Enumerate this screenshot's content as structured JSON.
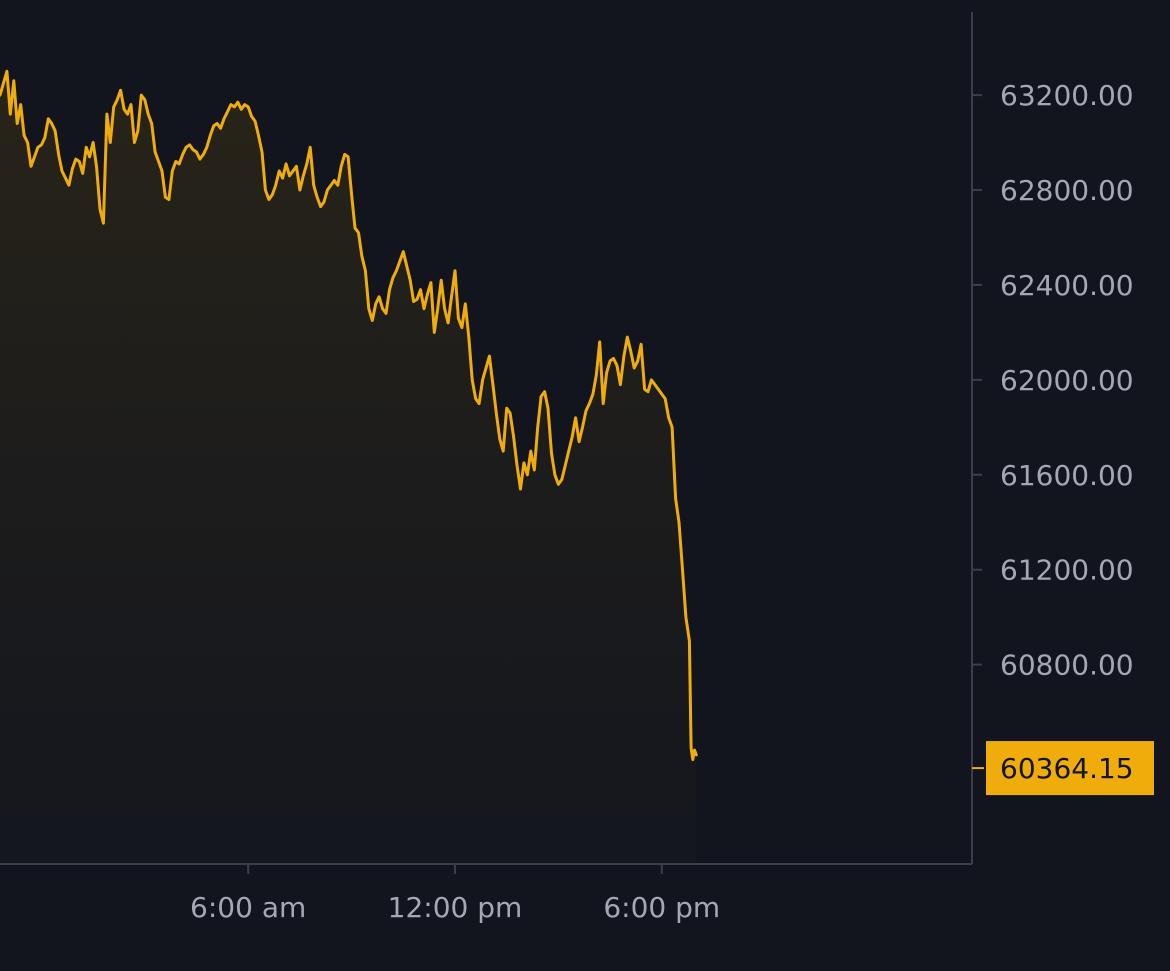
{
  "colors": {
    "background": "#12151d",
    "line": "#f0ac0a",
    "axis": "#3a3f4e",
    "tick_text": "#a3a8b5",
    "badge_bg": "#f0ac0a",
    "badge_text": "#12151d",
    "area_top": "#2a2518",
    "area_bottom": "#16181f"
  },
  "chart_data": {
    "type": "area",
    "title": "",
    "xlabel": "",
    "ylabel": "",
    "ylim": [
      59960,
      63550
    ],
    "xlim_hours": [
      -1.2,
      27.0
    ],
    "x_ticks": [
      {
        "label": "6:00 am",
        "hour": 6
      },
      {
        "label": "12:00 pm",
        "hour": 12
      },
      {
        "label": "6:00 pm",
        "hour": 18
      }
    ],
    "y_ticks": [
      "63200.00",
      "62800.00",
      "62400.00",
      "62000.00",
      "61600.00",
      "61200.00",
      "60800.00"
    ],
    "last_price": "60364.15",
    "grid": false,
    "series": [
      {
        "points": [
          [
            -1.2,
            63200
          ],
          [
            -1.0,
            63300
          ],
          [
            -0.9,
            63120
          ],
          [
            -0.8,
            63260
          ],
          [
            -0.7,
            63080
          ],
          [
            -0.6,
            63160
          ],
          [
            -0.5,
            63030
          ],
          [
            -0.4,
            63000
          ],
          [
            -0.3,
            62900
          ],
          [
            -0.2,
            62940
          ],
          [
            -0.1,
            62980
          ],
          [
            0.0,
            62990
          ],
          [
            0.1,
            63020
          ],
          [
            0.2,
            63100
          ],
          [
            0.3,
            63080
          ],
          [
            0.4,
            63050
          ],
          [
            0.5,
            62950
          ],
          [
            0.6,
            62880
          ],
          [
            0.7,
            62850
          ],
          [
            0.8,
            62820
          ],
          [
            0.9,
            62890
          ],
          [
            1.0,
            62930
          ],
          [
            1.1,
            62920
          ],
          [
            1.2,
            62870
          ],
          [
            1.3,
            62980
          ],
          [
            1.4,
            62940
          ],
          [
            1.5,
            63000
          ],
          [
            1.6,
            62900
          ],
          [
            1.7,
            62720
          ],
          [
            1.8,
            62660
          ],
          [
            1.9,
            63120
          ],
          [
            2.0,
            63000
          ],
          [
            2.1,
            63150
          ],
          [
            2.2,
            63180
          ],
          [
            2.3,
            63220
          ],
          [
            2.4,
            63140
          ],
          [
            2.5,
            63120
          ],
          [
            2.6,
            63160
          ],
          [
            2.7,
            63000
          ],
          [
            2.8,
            63050
          ],
          [
            2.9,
            63200
          ],
          [
            3.0,
            63180
          ],
          [
            3.1,
            63120
          ],
          [
            3.2,
            63080
          ],
          [
            3.3,
            62960
          ],
          [
            3.4,
            62920
          ],
          [
            3.5,
            62880
          ],
          [
            3.6,
            62770
          ],
          [
            3.7,
            62760
          ],
          [
            3.8,
            62880
          ],
          [
            3.9,
            62920
          ],
          [
            4.0,
            62910
          ],
          [
            4.1,
            62950
          ],
          [
            4.2,
            62980
          ],
          [
            4.3,
            62990
          ],
          [
            4.4,
            62970
          ],
          [
            4.5,
            62960
          ],
          [
            4.6,
            62930
          ],
          [
            4.7,
            62950
          ],
          [
            4.8,
            62980
          ],
          [
            4.9,
            63030
          ],
          [
            5.0,
            63070
          ],
          [
            5.1,
            63080
          ],
          [
            5.2,
            63060
          ],
          [
            5.3,
            63100
          ],
          [
            5.4,
            63130
          ],
          [
            5.5,
            63160
          ],
          [
            5.6,
            63150
          ],
          [
            5.7,
            63170
          ],
          [
            5.8,
            63140
          ],
          [
            5.9,
            63160
          ],
          [
            6.0,
            63150
          ],
          [
            6.1,
            63110
          ],
          [
            6.2,
            63090
          ],
          [
            6.3,
            63030
          ],
          [
            6.4,
            62960
          ],
          [
            6.5,
            62800
          ],
          [
            6.6,
            62760
          ],
          [
            6.7,
            62780
          ],
          [
            6.8,
            62820
          ],
          [
            6.9,
            62880
          ],
          [
            7.0,
            62850
          ],
          [
            7.1,
            62910
          ],
          [
            7.2,
            62860
          ],
          [
            7.3,
            62880
          ],
          [
            7.4,
            62900
          ],
          [
            7.5,
            62800
          ],
          [
            7.6,
            62860
          ],
          [
            7.7,
            62910
          ],
          [
            7.8,
            62980
          ],
          [
            7.9,
            62820
          ],
          [
            8.0,
            62770
          ],
          [
            8.1,
            62730
          ],
          [
            8.2,
            62750
          ],
          [
            8.3,
            62800
          ],
          [
            8.4,
            62820
          ],
          [
            8.5,
            62840
          ],
          [
            8.6,
            62820
          ],
          [
            8.7,
            62900
          ],
          [
            8.8,
            62950
          ],
          [
            8.9,
            62940
          ],
          [
            9.0,
            62780
          ],
          [
            9.1,
            62640
          ],
          [
            9.2,
            62620
          ],
          [
            9.3,
            62520
          ],
          [
            9.4,
            62460
          ],
          [
            9.5,
            62300
          ],
          [
            9.6,
            62250
          ],
          [
            9.7,
            62320
          ],
          [
            9.8,
            62350
          ],
          [
            9.9,
            62300
          ],
          [
            10.0,
            62280
          ],
          [
            10.1,
            62380
          ],
          [
            10.2,
            62430
          ],
          [
            10.3,
            62460
          ],
          [
            10.4,
            62500
          ],
          [
            10.5,
            62540
          ],
          [
            10.6,
            62480
          ],
          [
            10.7,
            62420
          ],
          [
            10.8,
            62330
          ],
          [
            10.9,
            62340
          ],
          [
            11.0,
            62380
          ],
          [
            11.1,
            62300
          ],
          [
            11.2,
            62360
          ],
          [
            11.3,
            62410
          ],
          [
            11.4,
            62200
          ],
          [
            11.5,
            62300
          ],
          [
            11.6,
            62420
          ],
          [
            11.7,
            62300
          ],
          [
            11.8,
            62240
          ],
          [
            11.9,
            62350
          ],
          [
            12.0,
            62460
          ],
          [
            12.1,
            62260
          ],
          [
            12.2,
            62220
          ],
          [
            12.3,
            62320
          ],
          [
            12.4,
            62180
          ],
          [
            12.5,
            62000
          ],
          [
            12.6,
            61920
          ],
          [
            12.7,
            61900
          ],
          [
            12.8,
            62000
          ],
          [
            12.9,
            62050
          ],
          [
            13.0,
            62100
          ],
          [
            13.1,
            61980
          ],
          [
            13.2,
            61860
          ],
          [
            13.3,
            61750
          ],
          [
            13.4,
            61700
          ],
          [
            13.5,
            61880
          ],
          [
            13.6,
            61860
          ],
          [
            13.7,
            61760
          ],
          [
            13.8,
            61640
          ],
          [
            13.9,
            61540
          ],
          [
            14.0,
            61650
          ],
          [
            14.1,
            61600
          ],
          [
            14.2,
            61700
          ],
          [
            14.3,
            61620
          ],
          [
            14.4,
            61800
          ],
          [
            14.5,
            61930
          ],
          [
            14.6,
            61950
          ],
          [
            14.7,
            61880
          ],
          [
            14.8,
            61690
          ],
          [
            14.9,
            61600
          ],
          [
            15.0,
            61560
          ],
          [
            15.1,
            61580
          ],
          [
            15.2,
            61640
          ],
          [
            15.3,
            61700
          ],
          [
            15.4,
            61760
          ],
          [
            15.5,
            61840
          ],
          [
            15.6,
            61740
          ],
          [
            15.7,
            61800
          ],
          [
            15.8,
            61870
          ],
          [
            15.9,
            61900
          ],
          [
            16.0,
            61940
          ],
          [
            16.1,
            62020
          ],
          [
            16.2,
            62160
          ],
          [
            16.3,
            61900
          ],
          [
            16.4,
            62030
          ],
          [
            16.5,
            62080
          ],
          [
            16.6,
            62090
          ],
          [
            16.7,
            62060
          ],
          [
            16.8,
            61980
          ],
          [
            16.9,
            62100
          ],
          [
            17.0,
            62180
          ],
          [
            17.1,
            62120
          ],
          [
            17.2,
            62050
          ],
          [
            17.3,
            62080
          ],
          [
            17.4,
            62150
          ],
          [
            17.5,
            61960
          ],
          [
            17.6,
            61950
          ],
          [
            17.7,
            62000
          ],
          [
            17.8,
            61980
          ],
          [
            17.9,
            61960
          ],
          [
            18.0,
            61940
          ],
          [
            18.1,
            61920
          ],
          [
            18.2,
            61840
          ],
          [
            18.3,
            61800
          ],
          [
            18.4,
            61500
          ],
          [
            18.5,
            61400
          ],
          [
            18.6,
            61200
          ],
          [
            18.7,
            61000
          ],
          [
            18.8,
            60900
          ],
          [
            18.85,
            60450
          ],
          [
            18.9,
            60400
          ],
          [
            18.95,
            60440
          ],
          [
            19.0,
            60420
          ]
        ]
      }
    ]
  }
}
